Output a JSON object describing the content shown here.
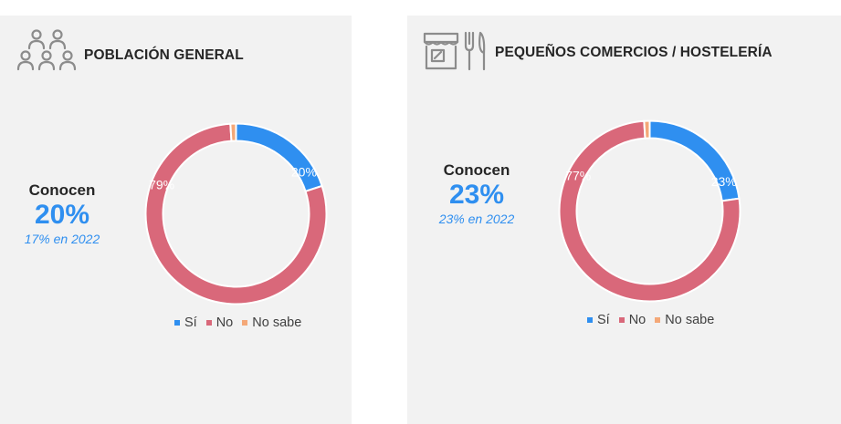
{
  "colors": {
    "si": "#2f8ff0",
    "no": "#d9687a",
    "no_sabe": "#f4a878",
    "text_dark": "#262626",
    "accent_blue": "#2f8ff0"
  },
  "legend": [
    "Sí",
    "No",
    "No sabe"
  ],
  "chart_data": [
    {
      "type": "pie",
      "title": "POBLACIÓN GENERAL",
      "icon": "people-group-icon",
      "categories": [
        "Sí",
        "No",
        "No sabe"
      ],
      "values": [
        20,
        79,
        1
      ],
      "data_labels": [
        "20%",
        "79%",
        ""
      ],
      "callout": {
        "label": "Conocen",
        "value": "20%",
        "previous": "17% en 2022"
      },
      "legend_position": "bottom"
    },
    {
      "type": "pie",
      "title": "PEQUEÑOS COMERCIOS / HOSTELERÍA",
      "icon": "shop-and-cutlery-icon",
      "categories": [
        "Sí",
        "No",
        "No sabe"
      ],
      "values": [
        23,
        77,
        1
      ],
      "data_labels": [
        "23%",
        "77%",
        ""
      ],
      "callout": {
        "label": "Conocen",
        "value": "23%",
        "previous": "23% en 2022"
      },
      "legend_position": "bottom"
    }
  ]
}
